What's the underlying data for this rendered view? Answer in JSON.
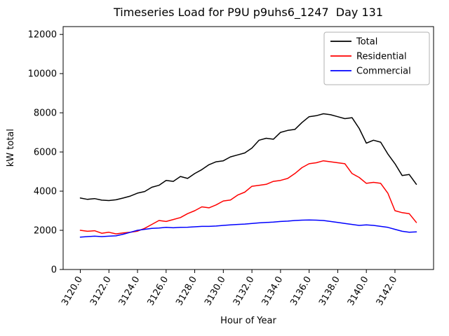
{
  "chart_data": {
    "type": "line",
    "title": "Timeseries Load for P9U p9uhs6_1247  Day 131",
    "xlabel": "Hour of Year",
    "ylabel": "kW total",
    "grid": false,
    "legend_position": "upper right",
    "xlim": [
      3118.8,
      3144.7
    ],
    "ylim": [
      0,
      12400
    ],
    "x_ticks": [
      3120,
      3122,
      3124,
      3126,
      3128,
      3130,
      3132,
      3134,
      3136,
      3138,
      3140,
      3142
    ],
    "x_tick_labels": [
      "3120.0",
      "3122.0",
      "3124.0",
      "3126.0",
      "3128.0",
      "3130.0",
      "3132.0",
      "3134.0",
      "3136.0",
      "3138.0",
      "3140.0",
      "3142.0"
    ],
    "y_ticks": [
      0,
      2000,
      4000,
      6000,
      8000,
      10000,
      12000
    ],
    "y_tick_labels": [
      "0",
      "2000",
      "4000",
      "6000",
      "8000",
      "10000",
      "12000"
    ],
    "x": [
      3120.0,
      3120.5,
      3121.0,
      3121.5,
      3122.0,
      3122.5,
      3123.0,
      3123.5,
      3124.0,
      3124.5,
      3125.0,
      3125.5,
      3126.0,
      3126.5,
      3127.0,
      3127.5,
      3128.0,
      3128.5,
      3129.0,
      3129.5,
      3130.0,
      3130.5,
      3131.0,
      3131.5,
      3132.0,
      3132.5,
      3133.0,
      3133.5,
      3134.0,
      3134.5,
      3135.0,
      3135.5,
      3136.0,
      3136.5,
      3137.0,
      3137.5,
      3138.0,
      3138.5,
      3139.0,
      3139.5,
      3140.0,
      3140.5,
      3141.0,
      3141.5,
      3142.0,
      3142.5,
      3143.0,
      3143.5
    ],
    "series": [
      {
        "name": "Total",
        "color": "#000000",
        "values": [
          3650,
          3580,
          3620,
          3540,
          3520,
          3560,
          3650,
          3750,
          3900,
          3980,
          4200,
          4300,
          4550,
          4500,
          4750,
          4650,
          4900,
          5100,
          5350,
          5500,
          5550,
          5750,
          5850,
          5950,
          6200,
          6600,
          6700,
          6650,
          7000,
          7100,
          7150,
          7500,
          7800,
          7850,
          7950,
          7900,
          7800,
          7700,
          7750,
          7200,
          6450,
          6600,
          6500,
          5900,
          5400,
          4800,
          4850,
          4350
        ]
      },
      {
        "name": "Residential",
        "color": "#ff0000",
        "values": [
          2000,
          1950,
          1980,
          1850,
          1900,
          1820,
          1870,
          1900,
          1960,
          2100,
          2300,
          2500,
          2450,
          2550,
          2650,
          2850,
          3000,
          3200,
          3150,
          3300,
          3500,
          3550,
          3800,
          3950,
          4250,
          4300,
          4350,
          4500,
          4550,
          4650,
          4900,
          5200,
          5400,
          5450,
          5550,
          5500,
          5450,
          5400,
          4900,
          4700,
          4400,
          4450,
          4400,
          3900,
          3000,
          2900,
          2850,
          2400
        ]
      },
      {
        "name": "Commercial",
        "color": "#0000ff",
        "values": [
          1650,
          1680,
          1700,
          1680,
          1700,
          1720,
          1800,
          1900,
          2000,
          2050,
          2100,
          2120,
          2150,
          2130,
          2150,
          2160,
          2180,
          2200,
          2200,
          2220,
          2250,
          2280,
          2300,
          2320,
          2350,
          2380,
          2400,
          2420,
          2450,
          2470,
          2500,
          2520,
          2530,
          2520,
          2500,
          2450,
          2400,
          2350,
          2300,
          2250,
          2280,
          2250,
          2200,
          2150,
          2050,
          1950,
          1900,
          1920
        ]
      }
    ]
  }
}
